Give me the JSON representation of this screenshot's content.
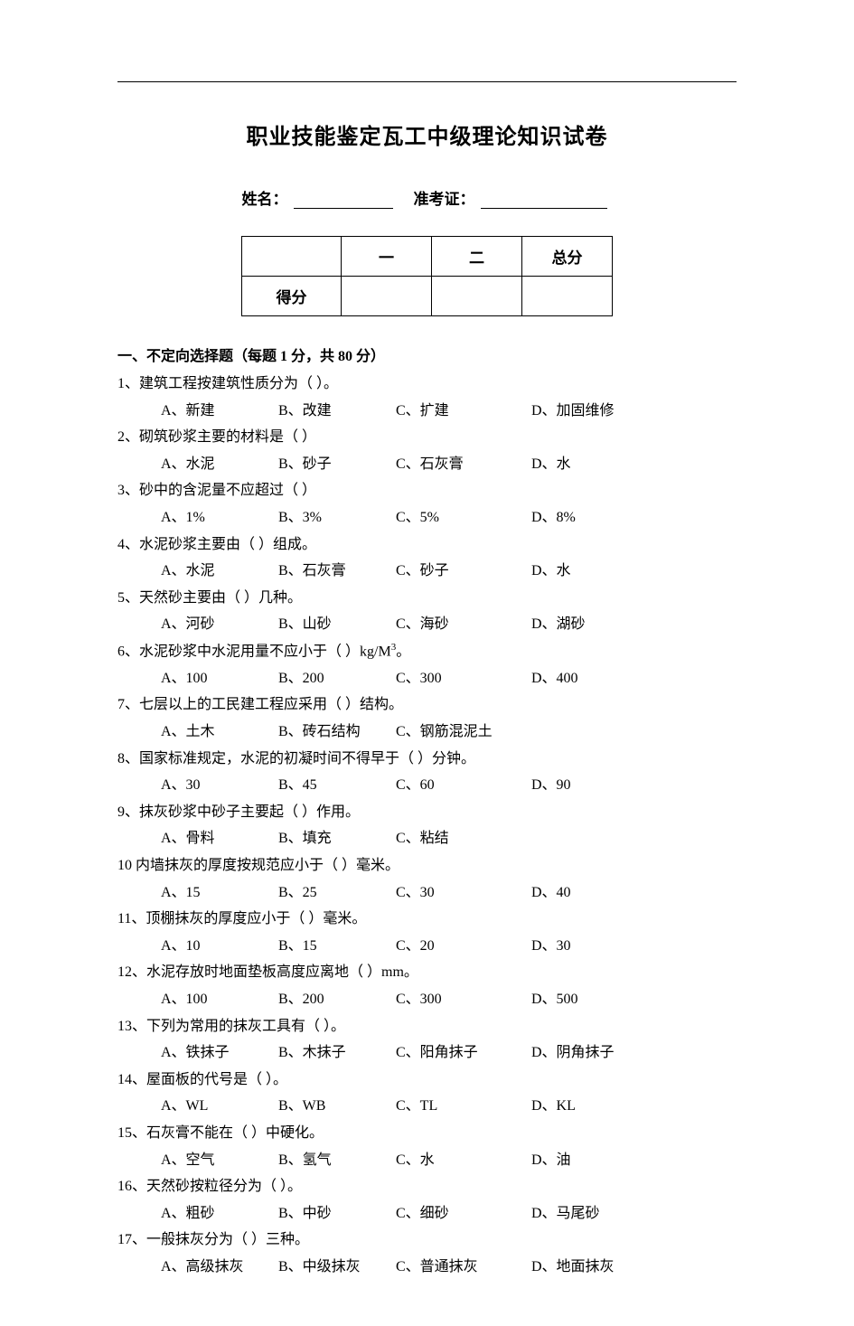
{
  "title": "职业技能鉴定瓦工中级理论知识试卷",
  "info": {
    "name_label": "姓名：",
    "ticket_label": "准考证："
  },
  "score_table": {
    "row1": [
      "",
      "一",
      "二",
      "总分"
    ],
    "row2_label": "得分"
  },
  "section_header": "一、不定向选择题（每题 1 分，共 80 分）",
  "questions": [
    {
      "num": "1、",
      "text": "建筑工程按建筑性质分为（  ）。",
      "opts": [
        "A、新建",
        "B、改建",
        "C、扩建",
        "D、加固维修"
      ]
    },
    {
      "num": "2、",
      "text": "砌筑砂浆主要的材料是（  ）",
      "opts": [
        "A、水泥",
        "B、砂子",
        "C、石灰膏",
        "D、水"
      ]
    },
    {
      "num": "3、",
      "text": "砂中的含泥量不应超过（  ）",
      "opts": [
        "A、1%",
        "B、3%",
        "C、5%",
        "D、8%"
      ]
    },
    {
      "num": "4、",
      "text": "水泥砂浆主要由（  ）组成。",
      "opts": [
        "A、水泥",
        "B、石灰膏",
        "C、砂子",
        "D、水"
      ]
    },
    {
      "num": "5、",
      "text": "天然砂主要由（  ）几种。",
      "opts": [
        "A、河砂",
        "B、山砂",
        "C、海砂",
        "D、湖砂"
      ]
    },
    {
      "num": "6、",
      "text_pre": "水泥砂浆中水泥用量不应小于（  ）kg/M",
      "text_sup": "3",
      "text_post": "。",
      "opts": [
        "A、100",
        "B、200",
        "C、300",
        "D、400"
      ]
    },
    {
      "num": "7、",
      "text": "七层以上的工民建工程应采用（  ）结构。",
      "opts": [
        "A、土木",
        "B、砖石结构",
        "C、钢筋混泥土"
      ]
    },
    {
      "num": "8、",
      "text": "国家标准规定，水泥的初凝时间不得早于（  ）分钟。",
      "opts": [
        "A、30",
        "B、45",
        "C、60",
        "D、90"
      ]
    },
    {
      "num": "9、",
      "text": "抹灰砂浆中砂子主要起（  ）作用。",
      "opts": [
        "A、骨料",
        "B、填充",
        "C、粘结"
      ]
    },
    {
      "num": "10",
      "text": " 内墙抹灰的厚度按规范应小于（  ）毫米。",
      "opts": [
        "A、15",
        "B、25",
        "C、30",
        "D、40"
      ]
    },
    {
      "num": "11、",
      "text": "顶棚抹灰的厚度应小于（  ）毫米。",
      "opts": [
        "A、10",
        "B、15",
        "C、20",
        "D、30"
      ]
    },
    {
      "num": "12、",
      "text": "水泥存放时地面垫板高度应离地（  ）mm。",
      "opts": [
        "A、100",
        "B、200",
        "C、300",
        "D、500"
      ]
    },
    {
      "num": "13、",
      "text": "下列为常用的抹灰工具有（  ）。",
      "opts": [
        "A、铁抹子",
        "B、木抹子",
        "C、阳角抹子",
        "D、阴角抹子"
      ]
    },
    {
      "num": "14、",
      "text": "屋面板的代号是（  ）。",
      "opts": [
        "A、WL",
        "B、WB",
        "C、TL",
        "D、KL"
      ]
    },
    {
      "num": "15、",
      "text": "石灰膏不能在（  ）中硬化。",
      "opts": [
        "A、空气",
        "B、氢气",
        "C、水",
        "D、油"
      ]
    },
    {
      "num": "16、",
      "text": "天然砂按粒径分为（  ）。",
      "opts": [
        "A、粗砂",
        "B、中砂",
        "C、细砂",
        "D、马尾砂"
      ]
    },
    {
      "num": "17、",
      "text": "一般抹灰分为（  ）三种。",
      "opts": [
        "A、高级抹灰",
        "B、中级抹灰",
        "C、普通抹灰",
        "D、地面抹灰"
      ]
    }
  ]
}
